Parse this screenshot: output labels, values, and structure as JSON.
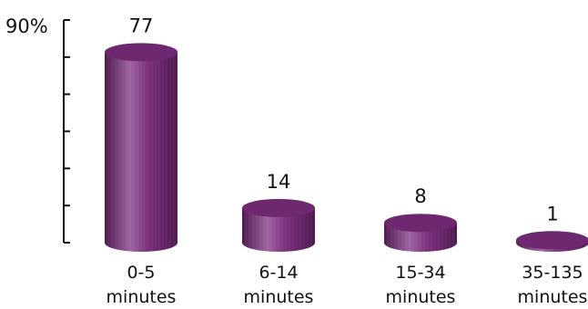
{
  "chart_data": {
    "type": "bar",
    "style": "3d-cylinder",
    "categories": [
      "0-5 minutes",
      "6-14 minutes",
      "15-34 minutes",
      "35-135 minutes"
    ],
    "category_lines": [
      [
        "0-5",
        "minutes"
      ],
      [
        "6-14",
        "minutes"
      ],
      [
        "15-34",
        "minutes"
      ],
      [
        "35-135",
        "minutes"
      ]
    ],
    "values": [
      77,
      14,
      8,
      1
    ],
    "data_labels": [
      "77",
      "14",
      "8",
      "1"
    ],
    "ylim": [
      0,
      90
    ],
    "y_top_label": "90%",
    "y_tick_count": 5,
    "grid": false,
    "legend": "none"
  },
  "colors": {
    "bar_dark": "#4e1a50",
    "bar_mid": "#7a2f7c",
    "bar_light": "#a064a1",
    "bar_top": "#6e286f",
    "axis": "#111111",
    "text": "#111111",
    "background": "#ffffff"
  }
}
